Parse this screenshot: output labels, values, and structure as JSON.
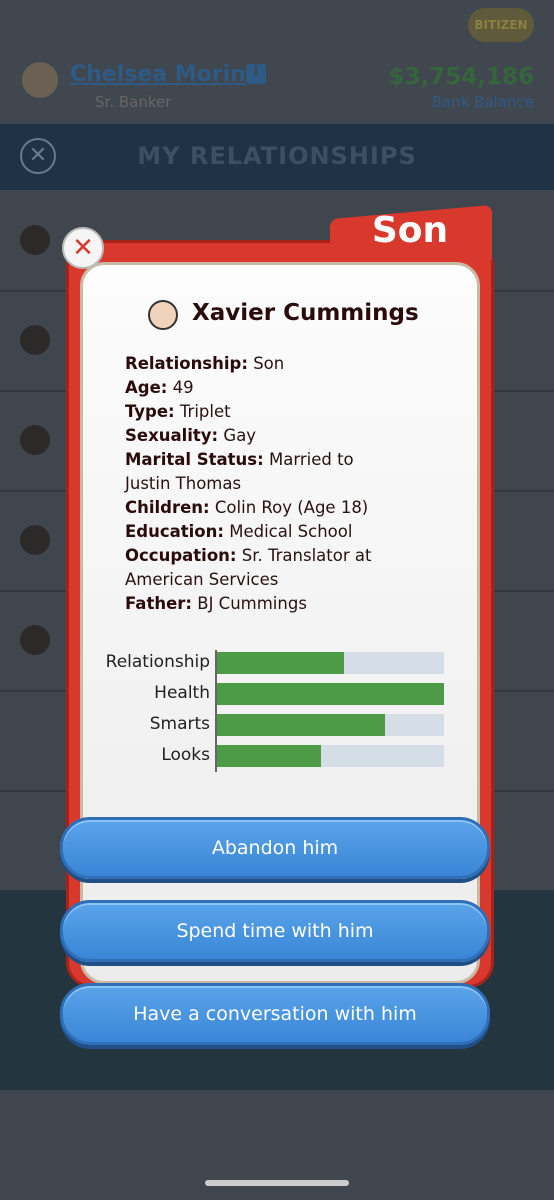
{
  "header": {
    "badge": "BITIZEN",
    "name": "Chelsea Morin",
    "role": "Sr. Banker",
    "balance": "$3,754,186",
    "balance_label": "Bank Balance"
  },
  "title": "MY RELATIONSHIPS",
  "modal": {
    "tag": "Son",
    "name": "Xavier Cummings",
    "details": [
      {
        "label": "Relationship:",
        "value": "Son"
      },
      {
        "label": "Age:",
        "value": "49"
      },
      {
        "label": "Type:",
        "value": "Triplet"
      },
      {
        "label": "Sexuality:",
        "value": "Gay"
      },
      {
        "label": "Marital Status:",
        "value": "Married to Justin Thomas"
      },
      {
        "label": "Children:",
        "value": "Colin Roy (Age 18)"
      },
      {
        "label": "Education:",
        "value": "Medical School"
      },
      {
        "label": "Occupation:",
        "value": "Sr. Translator at American Services"
      },
      {
        "label": "Father:",
        "value": "BJ Cummings"
      }
    ],
    "stats": {
      "xlim": [
        0,
        100
      ],
      "categories": [
        "Relationship",
        "Health",
        "Smarts",
        "Looks"
      ],
      "values": [
        56,
        100,
        74,
        46
      ],
      "color": "#4d9a47"
    },
    "buttons": [
      "Abandon him",
      "Spend time with him",
      "Have a conversation with him"
    ]
  }
}
